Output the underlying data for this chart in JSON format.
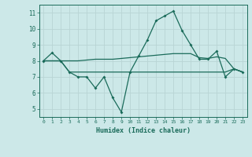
{
  "title": "",
  "xlabel": "Humidex (Indice chaleur)",
  "bg_color": "#cce8e8",
  "line_color": "#1a6b5a",
  "grid_color": "#b8d4d4",
  "xlim": [
    -0.5,
    23.5
  ],
  "ylim": [
    4.5,
    11.5
  ],
  "yticks": [
    5,
    6,
    7,
    8,
    9,
    10,
    11
  ],
  "xticks": [
    0,
    1,
    2,
    3,
    4,
    5,
    6,
    7,
    8,
    9,
    10,
    11,
    12,
    13,
    14,
    15,
    16,
    17,
    18,
    19,
    20,
    21,
    22,
    23
  ],
  "curve1": [
    8.0,
    8.5,
    8.0,
    7.3,
    7.0,
    7.0,
    6.3,
    7.0,
    5.7,
    4.8,
    7.3,
    8.3,
    9.3,
    10.5,
    10.8,
    11.1,
    9.9,
    9.0,
    8.1,
    8.1,
    8.6,
    7.0,
    7.5,
    7.3
  ],
  "curve2": [
    8.0,
    8.0,
    8.0,
    8.0,
    8.0,
    8.05,
    8.1,
    8.1,
    8.1,
    8.15,
    8.2,
    8.25,
    8.3,
    8.35,
    8.4,
    8.45,
    8.45,
    8.45,
    8.2,
    8.15,
    8.25,
    8.15,
    7.5,
    7.3
  ],
  "curve3": [
    8.0,
    8.0,
    8.0,
    7.3,
    7.3,
    7.3,
    7.3,
    7.3,
    7.3,
    7.3,
    7.3,
    7.3,
    7.3,
    7.3,
    7.3,
    7.3,
    7.3,
    7.3,
    7.3,
    7.3,
    7.3,
    7.3,
    7.5,
    7.3
  ]
}
